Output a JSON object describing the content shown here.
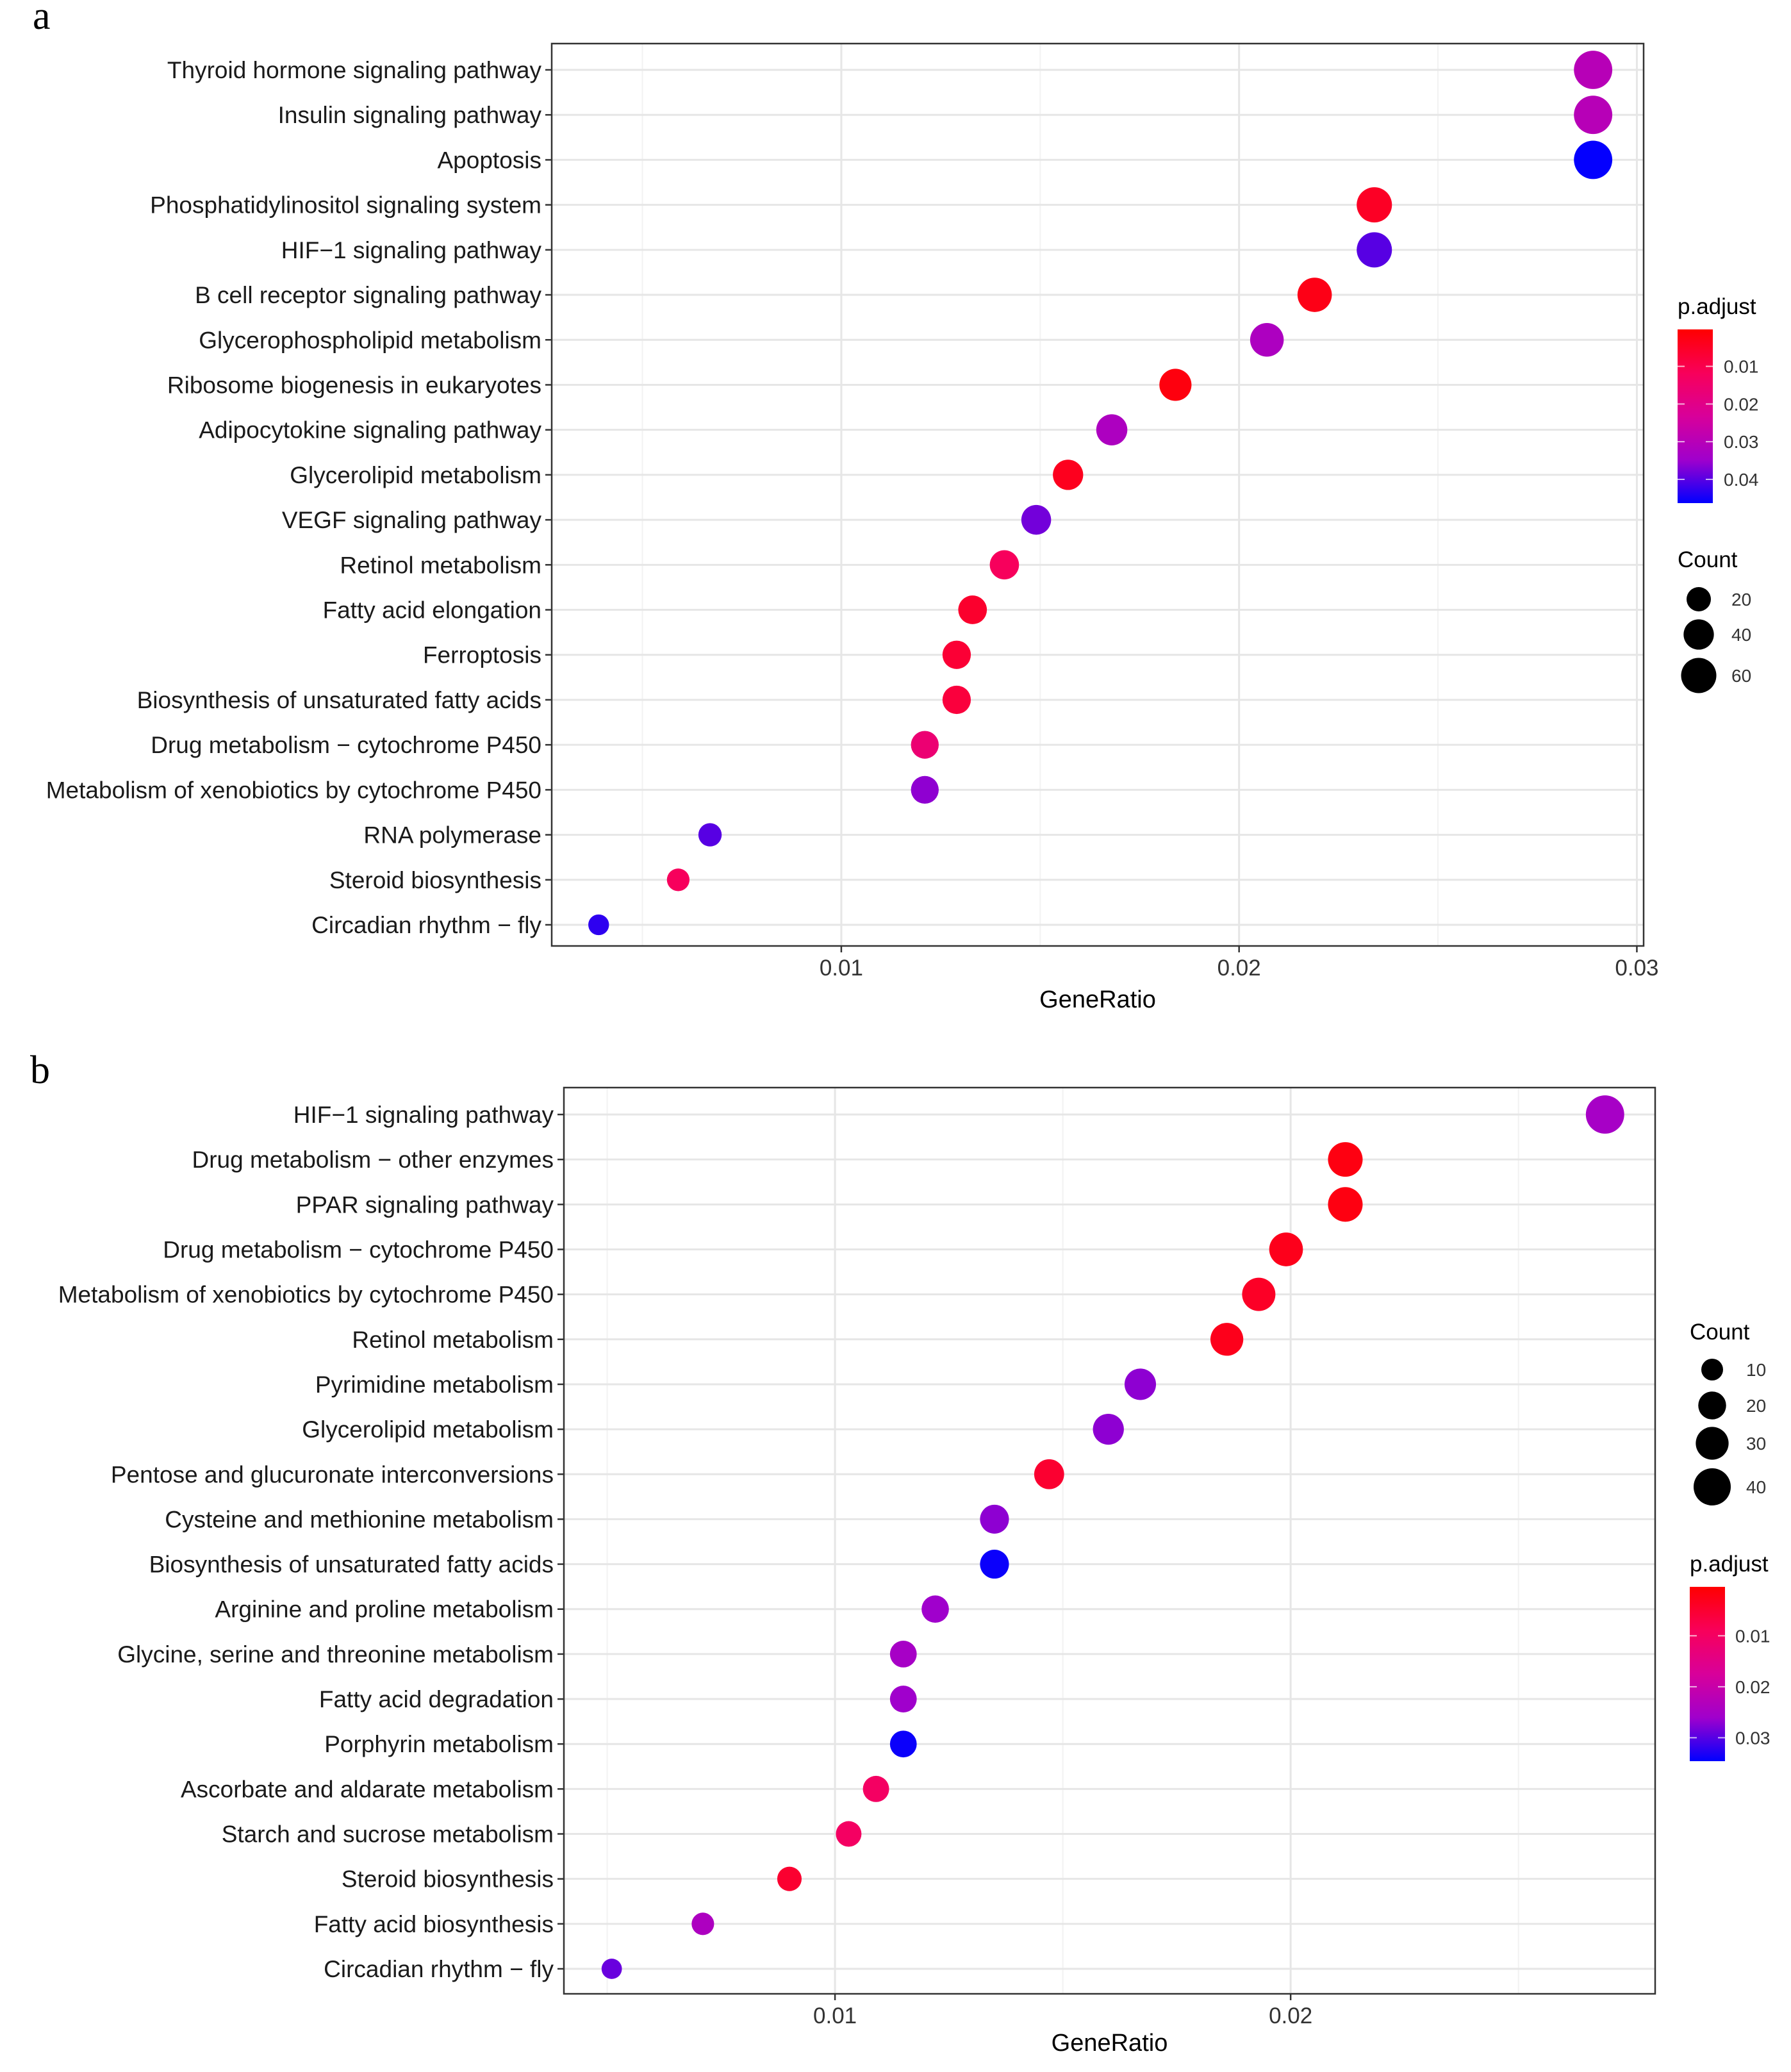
{
  "chart_data": [
    {
      "panel": "a",
      "type": "scatter",
      "xlabel": "GeneRatio",
      "ylabel": "",
      "xlim": [
        0.00272,
        0.03017
      ],
      "xticks": [
        0.01,
        0.02,
        0.03
      ],
      "xtick_labels": [
        "0.01",
        "0.02",
        "0.03"
      ],
      "grid": true,
      "categories": [
        "Thyroid hormone signaling pathway",
        "Insulin signaling pathway",
        "Apoptosis",
        "Phosphatidylinositol signaling system",
        "HIF−1 signaling pathway",
        "B cell receptor signaling pathway",
        "Glycerophospholipid metabolism",
        "Ribosome biogenesis in eukaryotes",
        "Adipocytokine signaling pathway",
        "Glycerolipid metabolism",
        "VEGF signaling pathway",
        "Retinol metabolism",
        "Fatty acid elongation",
        "Ferroptosis",
        "Biosynthesis of unsaturated fatty acids",
        "Drug metabolism − cytochrome P450",
        "Metabolism of xenobiotics by cytochrome P450",
        "RNA polymerase",
        "Steroid biosynthesis",
        "Circadian rhythm − fly"
      ],
      "gene_ratio": [
        0.0289,
        0.0289,
        0.0289,
        0.0234,
        0.0234,
        0.0219,
        0.0207,
        0.0184,
        0.0168,
        0.0157,
        0.0149,
        0.0141,
        0.0133,
        0.0129,
        0.0129,
        0.0121,
        0.0121,
        0.0067,
        0.0059,
        0.0039
      ],
      "count": [
        74,
        74,
        74,
        60,
        60,
        56,
        53,
        47,
        43,
        40,
        38,
        36,
        34,
        33,
        33,
        31,
        31,
        17,
        15,
        10
      ],
      "p_adjust": [
        0.03,
        0.03,
        0.046,
        0.005,
        0.04,
        0.003,
        0.032,
        0.002,
        0.032,
        0.004,
        0.038,
        0.012,
        0.006,
        0.007,
        0.008,
        0.016,
        0.036,
        0.04,
        0.012,
        0.043
      ],
      "color_legend": {
        "title": "p.adjust",
        "range": [
          0.0002,
          0.0463
        ],
        "ticks": [
          0.01,
          0.02,
          0.03,
          0.04
        ],
        "tick_labels": [
          "0.01",
          "0.02",
          "0.03",
          "0.04"
        ],
        "low_color": "#FF0000",
        "high_color": "#0000FF",
        "placement": "right"
      },
      "size_legend": {
        "title": "Count",
        "values": [
          20,
          40,
          60
        ],
        "labels": [
          "20",
          "40",
          "60"
        ],
        "placement": "right"
      }
    },
    {
      "panel": "b",
      "type": "scatter",
      "xlabel": "GeneRatio",
      "ylabel": "",
      "xlim": [
        0.00405,
        0.028
      ],
      "xticks": [
        0.01,
        0.02
      ],
      "xtick_labels": [
        "0.01",
        "0.02"
      ],
      "grid": true,
      "categories": [
        "HIF−1 signaling pathway",
        "Drug metabolism − other enzymes",
        "PPAR signaling pathway",
        "Drug metabolism − cytochrome P450",
        "Metabolism of xenobiotics by cytochrome P450",
        "Retinol metabolism",
        "Pyrimidine metabolism",
        "Glycerolipid metabolism",
        "Pentose and glucuronate interconversions",
        "Cysteine and methionine metabolism",
        "Biosynthesis of unsaturated fatty acids",
        "Arginine and proline metabolism",
        "Glycine, serine and threonine metabolism",
        "Fatty acid degradation",
        "Porphyrin metabolism",
        "Ascorbate and aldarate metabolism",
        "Starch and sucrose metabolism",
        "Steroid biosynthesis",
        "Fatty acid biosynthesis",
        "Circadian rhythm − fly"
      ],
      "gene_ratio": [
        0.0269,
        0.0212,
        0.0212,
        0.0199,
        0.0193,
        0.0186,
        0.0167,
        0.016,
        0.0147,
        0.0135,
        0.0135,
        0.0122,
        0.0115,
        0.0115,
        0.0115,
        0.0109,
        0.0103,
        0.009,
        0.0071,
        0.0051
      ],
      "count": [
        43,
        34,
        34,
        32,
        31,
        30,
        27,
        26,
        24,
        22,
        22,
        19,
        18,
        18,
        18,
        17,
        16,
        14,
        11,
        8
      ],
      "p_adjust": [
        0.025,
        0.002,
        0.002,
        0.003,
        0.004,
        0.003,
        0.027,
        0.027,
        0.005,
        0.027,
        0.034,
        0.026,
        0.025,
        0.026,
        0.034,
        0.01,
        0.01,
        0.005,
        0.024,
        0.029
      ],
      "color_legend": {
        "title": "p.adjust",
        "range": [
          0.0004,
          0.0346
        ],
        "ticks": [
          0.01,
          0.02,
          0.03
        ],
        "tick_labels": [
          "0.01",
          "0.02",
          "0.03"
        ],
        "low_color": "#FF0000",
        "high_color": "#0000FF",
        "placement": "right"
      },
      "size_legend": {
        "title": "Count",
        "values": [
          10,
          20,
          30,
          40
        ],
        "labels": [
          "10",
          "20",
          "30",
          "40"
        ],
        "placement": "right"
      }
    }
  ]
}
